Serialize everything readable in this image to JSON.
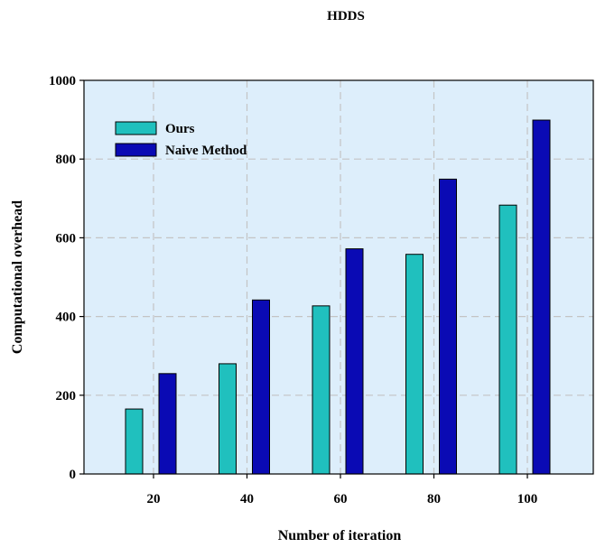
{
  "chart_data": {
    "type": "bar",
    "title": "HDDS",
    "xlabel": "Number of iteration",
    "ylabel": "Computational overhead",
    "categories": [
      "20",
      "40",
      "60",
      "80",
      "100"
    ],
    "series": [
      {
        "name": "Ours",
        "values": [
          165,
          280,
          427,
          558,
          683
        ],
        "color": "#20c0be"
      },
      {
        "name": "Naive Method",
        "values": [
          255,
          442,
          572,
          749,
          899
        ],
        "color": "#0a0ab4"
      }
    ],
    "ylim": [
      0,
      1000
    ],
    "yticks": [
      0,
      200,
      400,
      600,
      800,
      1000
    ],
    "grid": true,
    "legend_position": "top-left",
    "plot_background": "#ddeefb"
  }
}
